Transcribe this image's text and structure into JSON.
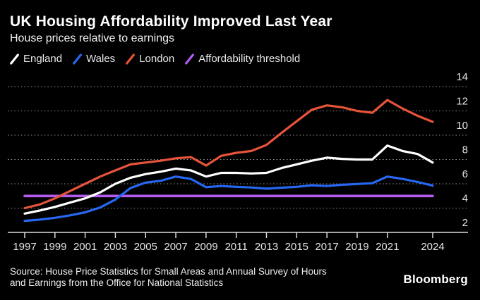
{
  "header": {
    "title": "UK Housing Affordability Improved Last Year",
    "subtitle": "House prices relative to earnings"
  },
  "legend": [
    {
      "label": "England",
      "color": "#ffffff",
      "swatch_icon": "diagonal-slash-icon"
    },
    {
      "label": "Wales",
      "color": "#2767f2",
      "swatch_icon": "diagonal-slash-icon"
    },
    {
      "label": "London",
      "color": "#e6543a",
      "swatch_icon": "diagonal-slash-icon"
    },
    {
      "label": "Affordability threshold",
      "color": "#b45cee",
      "swatch_icon": "diagonal-slash-icon"
    }
  ],
  "colors": {
    "background": "#000000",
    "grid": "#969696",
    "axis_line": "#dcdcdc",
    "axis_text": "#e4e4e4",
    "england": "#ffffff",
    "wales": "#2767f2",
    "london": "#e6543a",
    "threshold": "#b45cee"
  },
  "chart_data": {
    "type": "line",
    "title": "UK Housing Affordability Improved Last Year",
    "subtitle": "House prices relative to earnings",
    "xlabel": "",
    "ylabel": "",
    "ylim": [
      2,
      14
    ],
    "yticks": [
      2,
      4,
      6,
      8,
      10,
      12,
      14
    ],
    "xticks": [
      1997,
      1999,
      2001,
      2003,
      2005,
      2007,
      2009,
      2011,
      2013,
      2015,
      2017,
      2019,
      2021,
      2024
    ],
    "grid": "horizontal-dotted",
    "legend_position": "top-left",
    "x": [
      1997,
      1998,
      1999,
      2000,
      2001,
      2002,
      2003,
      2004,
      2005,
      2006,
      2007,
      2008,
      2009,
      2010,
      2011,
      2012,
      2013,
      2014,
      2015,
      2016,
      2017,
      2018,
      2019,
      2020,
      2021,
      2022,
      2023,
      2024
    ],
    "series": [
      {
        "name": "England",
        "color": "#ffffff",
        "values": [
          3.55,
          3.8,
          4.1,
          4.45,
          4.8,
          5.3,
          6.0,
          6.5,
          6.8,
          7.0,
          7.25,
          7.1,
          6.6,
          6.9,
          6.9,
          6.85,
          6.9,
          7.3,
          7.6,
          7.9,
          8.15,
          8.05,
          8.0,
          8.0,
          9.15,
          8.7,
          8.45,
          7.75
        ]
      },
      {
        "name": "Wales",
        "color": "#2767f2",
        "values": [
          2.95,
          3.05,
          3.2,
          3.4,
          3.65,
          4.05,
          4.7,
          5.65,
          6.1,
          6.25,
          6.6,
          6.4,
          5.72,
          5.82,
          5.75,
          5.7,
          5.6,
          5.68,
          5.75,
          5.88,
          5.82,
          5.92,
          5.98,
          6.05,
          6.6,
          6.4,
          6.15,
          5.85
        ]
      },
      {
        "name": "London",
        "color": "#e6543a",
        "values": [
          4.0,
          4.3,
          4.8,
          5.4,
          6.0,
          6.6,
          7.1,
          7.6,
          7.75,
          7.9,
          8.1,
          8.2,
          7.5,
          8.3,
          8.55,
          8.7,
          9.2,
          10.2,
          11.15,
          12.1,
          12.45,
          12.3,
          12.0,
          11.85,
          12.9,
          12.2,
          11.6,
          11.1
        ]
      },
      {
        "name": "Affordability threshold",
        "color": "#b45cee",
        "values": [
          5,
          5,
          5,
          5,
          5,
          5,
          5,
          5,
          5,
          5,
          5,
          5,
          5,
          5,
          5,
          5,
          5,
          5,
          5,
          5,
          5,
          5,
          5,
          5,
          5,
          5,
          5,
          5
        ]
      }
    ]
  },
  "footer": {
    "source_line1": "Source: House Price Statistics for Small Areas and Annual Survey of Hours",
    "source_line2": "and Earnings from the Office for National Statistics",
    "brand": "Bloomberg"
  }
}
